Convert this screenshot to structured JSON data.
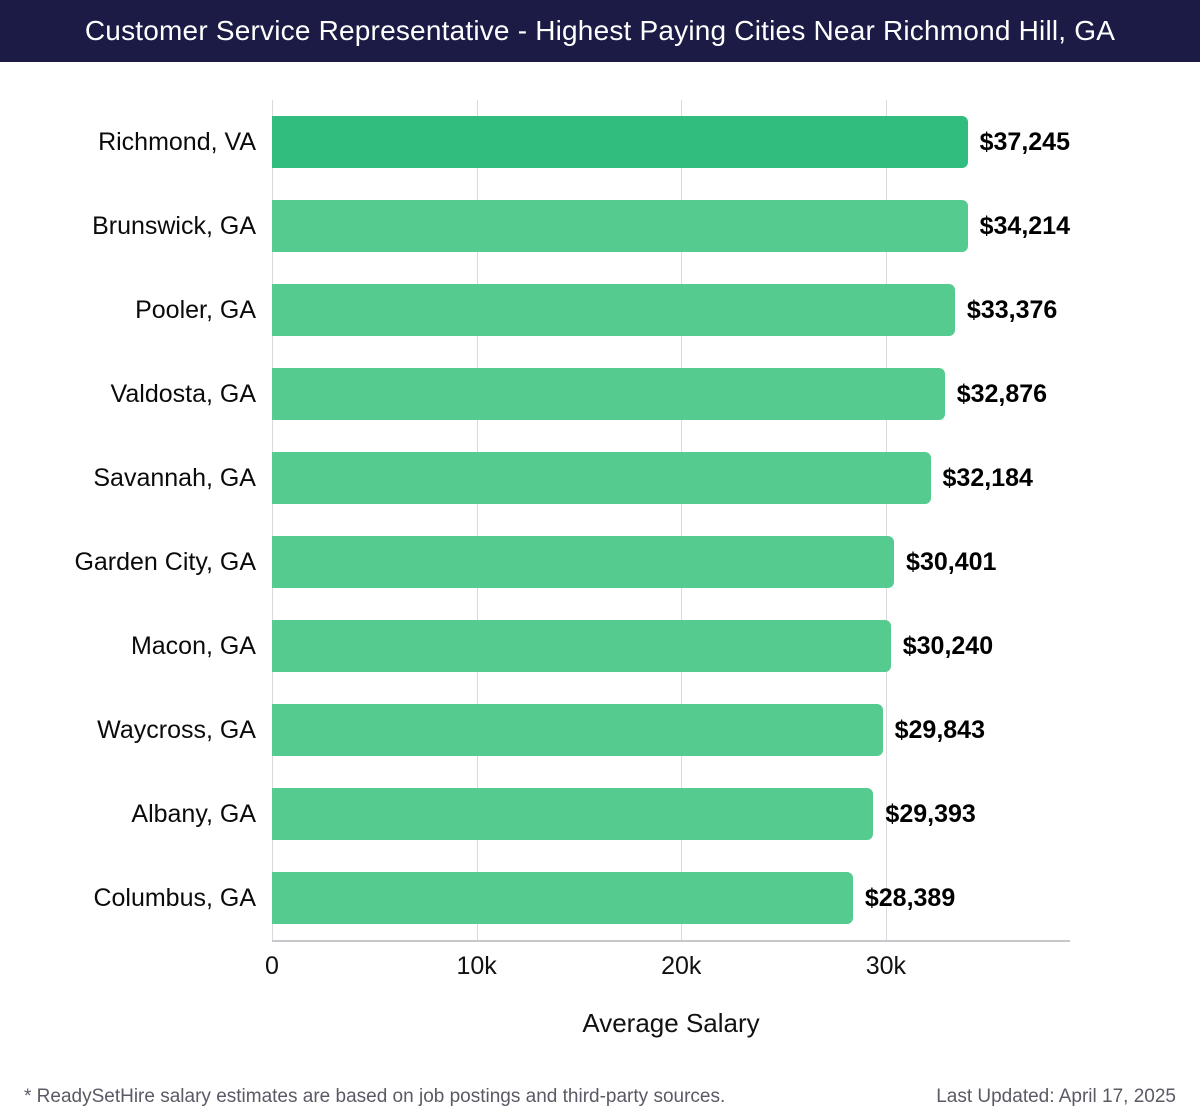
{
  "header": {
    "title": "Customer Service Representative - Highest Paying Cities Near Richmond Hill, GA",
    "bg_color": "#1b1b46"
  },
  "chart_data": {
    "type": "bar",
    "orientation": "horizontal",
    "title": "Customer Service Representative - Highest Paying Cities Near Richmond Hill, GA",
    "categories": [
      "Richmond, VA",
      "Brunswick, GA",
      "Pooler, GA",
      "Valdosta, GA",
      "Savannah, GA",
      "Garden City, GA",
      "Macon, GA",
      "Waycross, GA",
      "Albany, GA",
      "Columbus, GA"
    ],
    "values": [
      37245,
      34214,
      33376,
      32876,
      32184,
      30401,
      30240,
      29843,
      29393,
      28389
    ],
    "value_labels": [
      "$37,245",
      "$34,214",
      "$33,376",
      "$32,876",
      "$32,184",
      "$30,401",
      "$30,240",
      "$29,843",
      "$29,393",
      "$28,389"
    ],
    "xlabel": "Average Salary",
    "ylabel": "",
    "xlim": [
      0,
      39000
    ],
    "xticks": [
      {
        "value": 0,
        "label": "0"
      },
      {
        "value": 10000,
        "label": "10k"
      },
      {
        "value": 20000,
        "label": "20k"
      },
      {
        "value": 30000,
        "label": "30k"
      }
    ],
    "grid": true,
    "legend": "none",
    "bar_color": "#55cb90",
    "highlight_color": "#31bd7d"
  },
  "footer": {
    "note": "* ReadySetHire salary estimates are based on job postings and third-party sources.",
    "updated": "Last Updated: April 17, 2025"
  }
}
